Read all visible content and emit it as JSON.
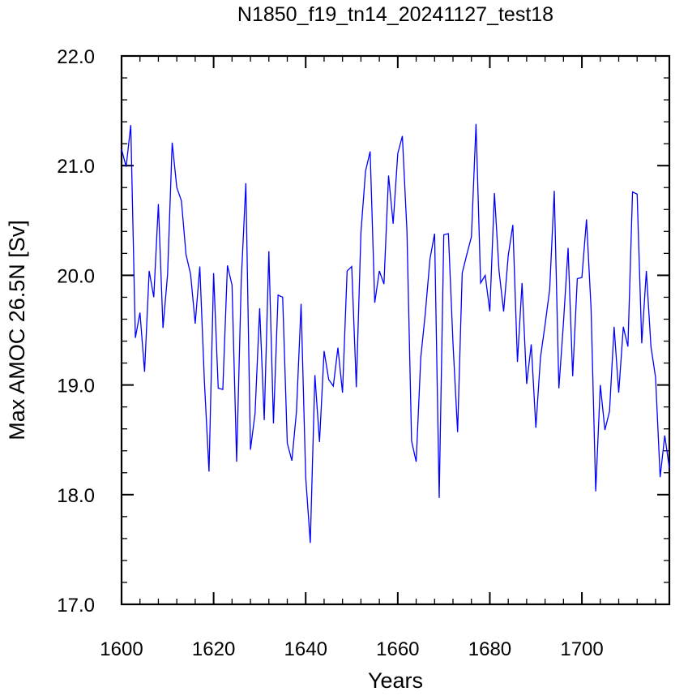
{
  "chart_data": {
    "type": "line",
    "title": "N1850_f19_tn14_20241127_test18",
    "xlabel": "Years",
    "ylabel": "Max AMOC 26.5N [Sv]",
    "xlim": [
      1600,
      1719
    ],
    "ylim": [
      17.0,
      22.0
    ],
    "x_ticks": [
      1600,
      1620,
      1640,
      1660,
      1680,
      1700
    ],
    "x_tick_labels": [
      "1600",
      "1620",
      "1640",
      "1660",
      "1680",
      "1700"
    ],
    "y_ticks": [
      17.0,
      18.0,
      19.0,
      20.0,
      21.0,
      22.0
    ],
    "y_tick_labels": [
      "17.0",
      "18.0",
      "19.0",
      "20.0",
      "21.0",
      "22.0"
    ],
    "grid": false,
    "line_color": "#0000ff",
    "series": [
      {
        "x": [
          1600,
          1601,
          1602,
          1603,
          1604,
          1605,
          1606,
          1607,
          1608,
          1609,
          1610,
          1611,
          1612,
          1613,
          1614,
          1615,
          1616,
          1617,
          1618,
          1619,
          1620,
          1621,
          1622,
          1623,
          1624,
          1625,
          1626,
          1627,
          1628,
          1629,
          1630,
          1631,
          1632,
          1633,
          1634,
          1635,
          1636,
          1637,
          1638,
          1639,
          1640,
          1641,
          1642,
          1643,
          1644,
          1645,
          1646,
          1647,
          1648,
          1649,
          1650,
          1651,
          1652,
          1653,
          1654,
          1655,
          1656,
          1657,
          1658,
          1659,
          1660,
          1661,
          1662,
          1663,
          1664,
          1665,
          1666,
          1667,
          1668,
          1669,
          1670,
          1671,
          1672,
          1673,
          1674,
          1675,
          1676,
          1677,
          1678,
          1679,
          1680,
          1681,
          1682,
          1683,
          1684,
          1685,
          1686,
          1687,
          1688,
          1689,
          1690,
          1691,
          1692,
          1693,
          1694,
          1695,
          1696,
          1697,
          1698,
          1699,
          1700,
          1701,
          1702,
          1703,
          1704,
          1705,
          1706,
          1707,
          1708,
          1709,
          1710,
          1711,
          1712,
          1713,
          1714,
          1715,
          1716,
          1717,
          1718,
          1719
        ],
        "values": [
          21.15,
          20.99,
          21.37,
          19.43,
          19.66,
          19.12,
          20.04,
          19.8,
          20.65,
          19.52,
          20.01,
          21.21,
          20.8,
          20.68,
          20.19,
          20.01,
          19.56,
          20.08,
          19.03,
          18.21,
          20.02,
          18.97,
          18.96,
          20.09,
          19.91,
          18.3,
          19.95,
          20.84,
          18.41,
          18.74,
          19.7,
          18.68,
          20.22,
          18.65,
          19.82,
          19.8,
          18.47,
          18.31,
          18.76,
          19.74,
          18.16,
          17.56,
          19.09,
          18.48,
          19.31,
          19.05,
          18.99,
          19.34,
          18.93,
          20.04,
          20.08,
          18.98,
          20.39,
          20.95,
          21.13,
          19.75,
          20.04,
          19.92,
          20.91,
          20.47,
          21.11,
          21.27,
          20.4,
          18.49,
          18.3,
          19.25,
          19.66,
          20.15,
          20.38,
          17.97,
          20.37,
          20.38,
          19.38,
          18.57,
          20.02,
          20.19,
          20.35,
          21.38,
          19.93,
          20.0,
          19.67,
          20.75,
          20.04,
          19.67,
          20.18,
          20.46,
          19.21,
          19.93,
          19.01,
          19.37,
          18.61,
          19.25,
          19.55,
          19.87,
          20.77,
          18.97,
          19.57,
          20.25,
          19.08,
          19.97,
          19.98,
          20.51,
          19.69,
          18.03,
          19.0,
          18.59,
          18.76,
          19.53,
          18.93,
          19.53,
          19.35,
          20.76,
          20.74,
          19.38,
          20.04,
          19.35,
          19.07,
          18.16,
          18.54,
          18.24
        ]
      }
    ]
  }
}
